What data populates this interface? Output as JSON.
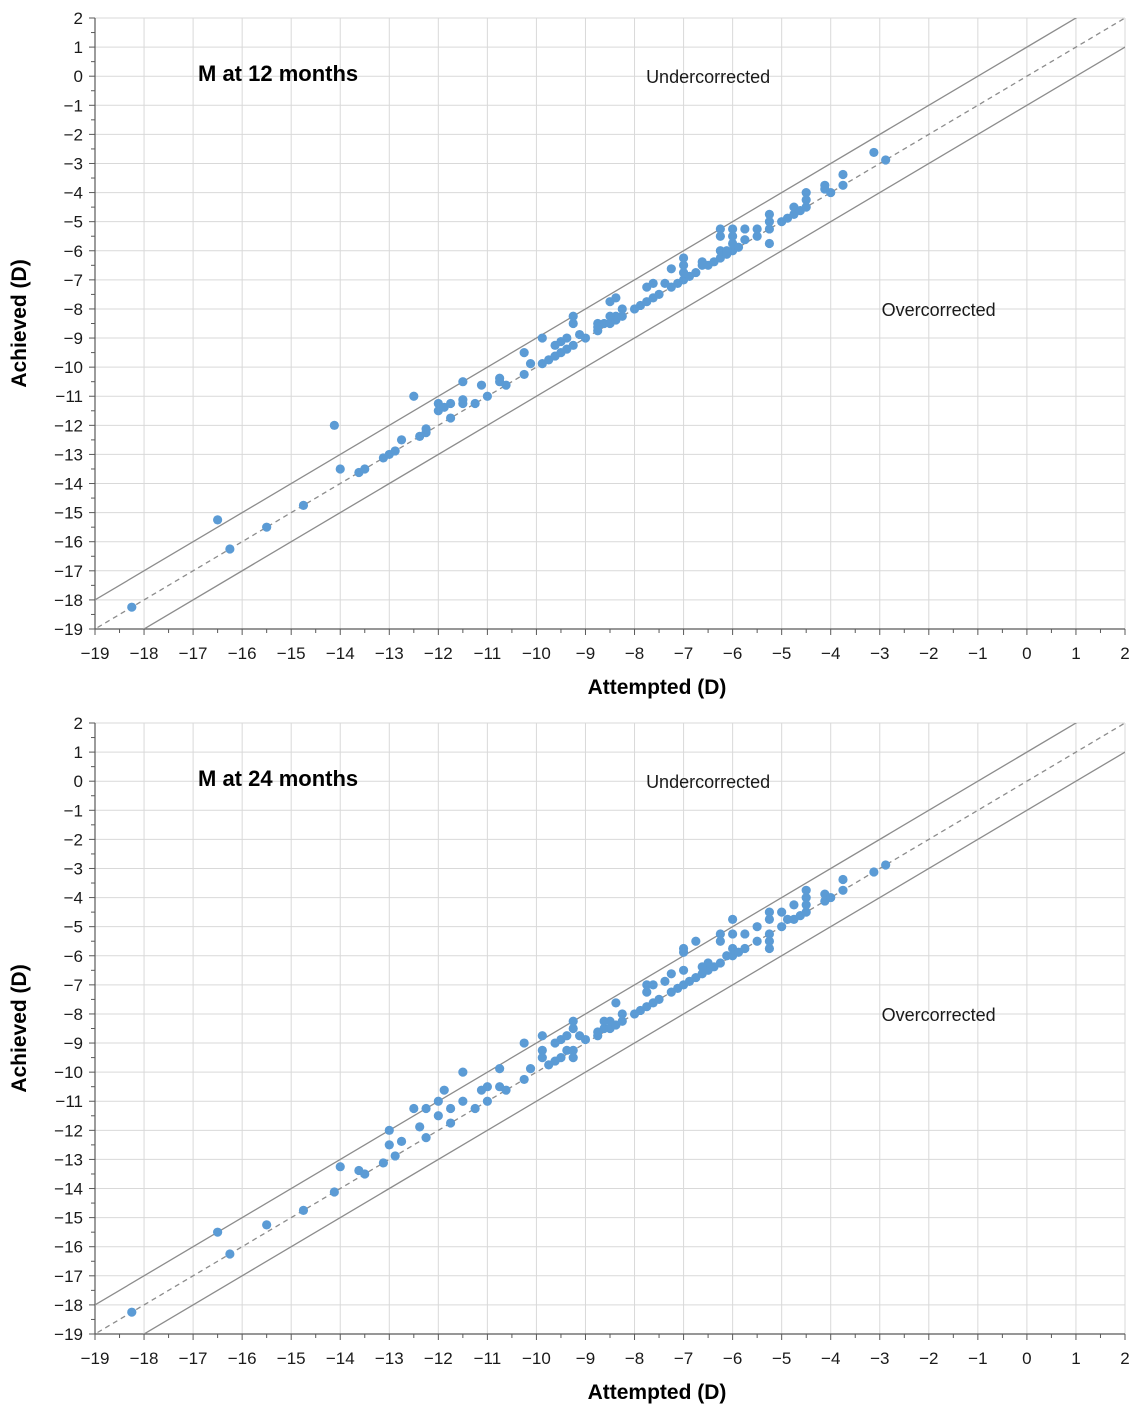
{
  "chart_data": [
    {
      "type": "scatter",
      "title": "M at 12 months",
      "xlabel": "Attempted (D)",
      "ylabel": "Achieved (D)",
      "xlim": [
        -19,
        2
      ],
      "ylim": [
        -19,
        2
      ],
      "xticks": [
        -19,
        -18,
        -17,
        -16,
        -15,
        -14,
        -13,
        -12,
        -11,
        -10,
        -9,
        -8,
        -7,
        -6,
        -5,
        -4,
        -3,
        -2,
        -1,
        0,
        1,
        2
      ],
      "yticks": [
        2,
        1,
        0,
        -1,
        -2,
        -3,
        -4,
        -5,
        -6,
        -7,
        -8,
        -9,
        -10,
        -11,
        -12,
        -13,
        -14,
        -15,
        -16,
        -17,
        -18,
        -19
      ],
      "grid": true,
      "reference_lines": [
        {
          "kind": "identity",
          "style": "dashed",
          "offset": 0
        },
        {
          "kind": "limit",
          "style": "solid",
          "offset": 1
        },
        {
          "kind": "limit",
          "style": "solid",
          "offset": -1
        }
      ],
      "annotations": [
        {
          "text": "Undercorrected",
          "x": -6.5,
          "y": 0
        },
        {
          "text": "Overcorrected",
          "x": -1.8,
          "y": -8
        }
      ],
      "point_color": "#5b9bd5",
      "line_color": "#8c8c8c",
      "points": [
        [
          -18.25,
          -18.25
        ],
        [
          -16.5,
          -15.25
        ],
        [
          -16.25,
          -16.25
        ],
        [
          -15.5,
          -15.5
        ],
        [
          -14.75,
          -14.75
        ],
        [
          -14.12,
          -12.0
        ],
        [
          -14.0,
          -13.5
        ],
        [
          -13.62,
          -13.62
        ],
        [
          -13.5,
          -13.5
        ],
        [
          -13.12,
          -13.12
        ],
        [
          -13.0,
          -13.0
        ],
        [
          -12.88,
          -12.88
        ],
        [
          -12.75,
          -12.5
        ],
        [
          -12.5,
          -11.0
        ],
        [
          -12.38,
          -12.38
        ],
        [
          -12.25,
          -12.25
        ],
        [
          -12.25,
          -12.12
        ],
        [
          -12.0,
          -11.5
        ],
        [
          -12.0,
          -11.25
        ],
        [
          -11.88,
          -11.38
        ],
        [
          -11.75,
          -11.25
        ],
        [
          -11.75,
          -11.75
        ],
        [
          -11.5,
          -11.12
        ],
        [
          -11.5,
          -11.25
        ],
        [
          -11.5,
          -10.5
        ],
        [
          -11.25,
          -11.25
        ],
        [
          -11.12,
          -10.62
        ],
        [
          -11.0,
          -11.0
        ],
        [
          -10.75,
          -10.38
        ],
        [
          -10.75,
          -10.5
        ],
        [
          -10.62,
          -10.62
        ],
        [
          -10.25,
          -10.25
        ],
        [
          -10.25,
          -9.5
        ],
        [
          -10.12,
          -9.88
        ],
        [
          -9.88,
          -9.88
        ],
        [
          -9.88,
          -9.0
        ],
        [
          -9.75,
          -9.75
        ],
        [
          -9.62,
          -9.62
        ],
        [
          -9.62,
          -9.25
        ],
        [
          -9.5,
          -9.12
        ],
        [
          -9.5,
          -9.5
        ],
        [
          -9.38,
          -9.38
        ],
        [
          -9.38,
          -9.0
        ],
        [
          -9.25,
          -9.25
        ],
        [
          -9.25,
          -8.5
        ],
        [
          -9.25,
          -8.25
        ],
        [
          -9.12,
          -8.88
        ],
        [
          -9.0,
          -9.0
        ],
        [
          -8.75,
          -8.75
        ],
        [
          -8.75,
          -8.5
        ],
        [
          -8.62,
          -8.5
        ],
        [
          -8.5,
          -8.5
        ],
        [
          -8.5,
          -7.75
        ],
        [
          -8.38,
          -8.38
        ],
        [
          -8.38,
          -7.62
        ],
        [
          -8.38,
          -8.25
        ],
        [
          -8.25,
          -8.25
        ],
        [
          -8.25,
          -8.0
        ],
        [
          -8.0,
          -8.0
        ],
        [
          -7.88,
          -7.88
        ],
        [
          -7.75,
          -7.75
        ],
        [
          -7.75,
          -7.25
        ],
        [
          -7.62,
          -7.62
        ],
        [
          -7.62,
          -7.12
        ],
        [
          -7.5,
          -7.5
        ],
        [
          -7.38,
          -7.12
        ],
        [
          -7.25,
          -7.25
        ],
        [
          -7.25,
          -6.62
        ],
        [
          -7.12,
          -7.12
        ],
        [
          -7.0,
          -7.0
        ],
        [
          -7.0,
          -6.75
        ],
        [
          -7.0,
          -6.25
        ],
        [
          -7.0,
          -6.5
        ],
        [
          -6.88,
          -6.88
        ],
        [
          -6.75,
          -6.75
        ],
        [
          -6.62,
          -6.5
        ],
        [
          -6.5,
          -6.5
        ],
        [
          -6.38,
          -6.38
        ],
        [
          -6.25,
          -6.25
        ],
        [
          -6.25,
          -6.0
        ],
        [
          -6.12,
          -6.12
        ],
        [
          -6.0,
          -6.0
        ],
        [
          -6.0,
          -5.75
        ],
        [
          -5.88,
          -5.88
        ],
        [
          -5.75,
          -5.62
        ],
        [
          -5.75,
          -5.25
        ],
        [
          -5.5,
          -5.5
        ],
        [
          -5.5,
          -5.25
        ],
        [
          -5.25,
          -5.25
        ],
        [
          -5.25,
          -5.0
        ],
        [
          -5.25,
          -4.75
        ],
        [
          -5.25,
          -5.75
        ],
        [
          -5.0,
          -5.0
        ],
        [
          -4.88,
          -4.88
        ],
        [
          -4.75,
          -4.75
        ],
        [
          -4.75,
          -4.5
        ],
        [
          -4.62,
          -4.62
        ],
        [
          -4.5,
          -4.5
        ],
        [
          -4.5,
          -4.25
        ],
        [
          -4.5,
          -4.0
        ],
        [
          -4.12,
          -3.75
        ],
        [
          -4.12,
          -3.88
        ],
        [
          -4.0,
          -4.0
        ],
        [
          -3.75,
          -3.75
        ],
        [
          -3.75,
          -3.38
        ],
        [
          -3.12,
          -2.62
        ],
        [
          -2.88,
          -2.88
        ],
        [
          -6.25,
          -5.25
        ],
        [
          -6.25,
          -5.5
        ],
        [
          -6.0,
          -5.5
        ],
        [
          -6.0,
          -5.25
        ],
        [
          -6.62,
          -6.38
        ],
        [
          -6.12,
          -6.0
        ],
        [
          -8.5,
          -8.25
        ],
        [
          -8.75,
          -8.62
        ]
      ]
    },
    {
      "type": "scatter",
      "title": "M at 24 months",
      "xlabel": "Attempted (D)",
      "ylabel": "Achieved (D)",
      "xlim": [
        -19,
        2
      ],
      "ylim": [
        -19,
        2
      ],
      "xticks": [
        -19,
        -18,
        -17,
        -16,
        -15,
        -14,
        -13,
        -12,
        -11,
        -10,
        -9,
        -8,
        -7,
        -6,
        -5,
        -4,
        -3,
        -2,
        -1,
        0,
        1,
        2
      ],
      "yticks": [
        2,
        1,
        0,
        -1,
        -2,
        -3,
        -4,
        -5,
        -6,
        -7,
        -8,
        -9,
        -10,
        -11,
        -12,
        -13,
        -14,
        -15,
        -16,
        -17,
        -18,
        -19
      ],
      "grid": true,
      "reference_lines": [
        {
          "kind": "identity",
          "style": "dashed",
          "offset": 0
        },
        {
          "kind": "limit",
          "style": "solid",
          "offset": 1
        },
        {
          "kind": "limit",
          "style": "solid",
          "offset": -1
        }
      ],
      "annotations": [
        {
          "text": "Undercorrected",
          "x": -6.5,
          "y": 0
        },
        {
          "text": "Overcorrected",
          "x": -1.8,
          "y": -8
        }
      ],
      "point_color": "#5b9bd5",
      "line_color": "#8c8c8c",
      "points": [
        [
          -18.25,
          -18.25
        ],
        [
          -16.5,
          -15.5
        ],
        [
          -16.25,
          -16.25
        ],
        [
          -15.5,
          -15.25
        ],
        [
          -14.75,
          -14.75
        ],
        [
          -14.12,
          -14.12
        ],
        [
          -14.0,
          -13.25
        ],
        [
          -13.62,
          -13.38
        ],
        [
          -13.5,
          -13.5
        ],
        [
          -13.12,
          -13.12
        ],
        [
          -13.0,
          -12.0
        ],
        [
          -13.0,
          -12.5
        ],
        [
          -12.88,
          -12.88
        ],
        [
          -12.75,
          -12.38
        ],
        [
          -12.5,
          -11.25
        ],
        [
          -12.38,
          -11.88
        ],
        [
          -12.25,
          -12.25
        ],
        [
          -12.25,
          -11.25
        ],
        [
          -12.0,
          -11.0
        ],
        [
          -12.0,
          -11.5
        ],
        [
          -11.88,
          -10.62
        ],
        [
          -11.75,
          -11.25
        ],
        [
          -11.75,
          -11.75
        ],
        [
          -11.5,
          -11.0
        ],
        [
          -11.5,
          -10.0
        ],
        [
          -11.25,
          -11.25
        ],
        [
          -11.12,
          -10.62
        ],
        [
          -11.0,
          -11.0
        ],
        [
          -11.0,
          -10.5
        ],
        [
          -10.75,
          -10.5
        ],
        [
          -10.75,
          -9.88
        ],
        [
          -10.62,
          -10.62
        ],
        [
          -10.25,
          -10.25
        ],
        [
          -10.25,
          -9.0
        ],
        [
          -10.12,
          -9.88
        ],
        [
          -9.88,
          -9.25
        ],
        [
          -9.88,
          -9.5
        ],
        [
          -9.88,
          -8.75
        ],
        [
          -9.75,
          -9.75
        ],
        [
          -9.62,
          -9.62
        ],
        [
          -9.62,
          -9.0
        ],
        [
          -9.5,
          -9.5
        ],
        [
          -9.5,
          -8.88
        ],
        [
          -9.38,
          -9.25
        ],
        [
          -9.38,
          -8.75
        ],
        [
          -9.25,
          -9.25
        ],
        [
          -9.25,
          -9.5
        ],
        [
          -9.25,
          -8.25
        ],
        [
          -9.25,
          -8.5
        ],
        [
          -9.12,
          -8.75
        ],
        [
          -9.0,
          -8.88
        ],
        [
          -8.75,
          -8.75
        ],
        [
          -8.62,
          -8.5
        ],
        [
          -8.5,
          -8.5
        ],
        [
          -8.5,
          -8.25
        ],
        [
          -8.38,
          -8.38
        ],
        [
          -8.38,
          -7.62
        ],
        [
          -8.25,
          -8.25
        ],
        [
          -8.25,
          -8.0
        ],
        [
          -8.0,
          -8.0
        ],
        [
          -7.88,
          -7.88
        ],
        [
          -7.75,
          -7.75
        ],
        [
          -7.75,
          -7.25
        ],
        [
          -7.75,
          -7.0
        ],
        [
          -7.62,
          -7.62
        ],
        [
          -7.62,
          -7.0
        ],
        [
          -7.5,
          -7.5
        ],
        [
          -7.38,
          -6.88
        ],
        [
          -7.25,
          -7.25
        ],
        [
          -7.25,
          -6.62
        ],
        [
          -7.12,
          -7.12
        ],
        [
          -7.0,
          -7.0
        ],
        [
          -7.0,
          -6.5
        ],
        [
          -7.0,
          -5.88
        ],
        [
          -7.0,
          -5.75
        ],
        [
          -6.88,
          -6.88
        ],
        [
          -6.75,
          -6.75
        ],
        [
          -6.75,
          -5.5
        ],
        [
          -6.62,
          -6.62
        ],
        [
          -6.5,
          -6.5
        ],
        [
          -6.38,
          -6.38
        ],
        [
          -6.25,
          -6.25
        ],
        [
          -6.25,
          -5.25
        ],
        [
          -6.25,
          -5.5
        ],
        [
          -6.12,
          -6.0
        ],
        [
          -6.0,
          -6.0
        ],
        [
          -6.0,
          -5.75
        ],
        [
          -6.0,
          -5.25
        ],
        [
          -6.0,
          -4.75
        ],
        [
          -5.88,
          -5.88
        ],
        [
          -5.75,
          -5.75
        ],
        [
          -5.75,
          -5.25
        ],
        [
          -5.5,
          -5.5
        ],
        [
          -5.5,
          -5.0
        ],
        [
          -5.25,
          -5.25
        ],
        [
          -5.25,
          -4.75
        ],
        [
          -5.25,
          -4.5
        ],
        [
          -5.25,
          -5.5
        ],
        [
          -5.25,
          -5.75
        ],
        [
          -5.0,
          -5.0
        ],
        [
          -5.0,
          -4.5
        ],
        [
          -4.88,
          -4.75
        ],
        [
          -4.75,
          -4.75
        ],
        [
          -4.75,
          -4.25
        ],
        [
          -4.62,
          -4.62
        ],
        [
          -4.5,
          -4.5
        ],
        [
          -4.5,
          -4.25
        ],
        [
          -4.5,
          -4.0
        ],
        [
          -4.5,
          -3.75
        ],
        [
          -4.12,
          -3.88
        ],
        [
          -4.12,
          -4.12
        ],
        [
          -4.0,
          -4.0
        ],
        [
          -3.75,
          -3.75
        ],
        [
          -3.75,
          -3.38
        ],
        [
          -3.12,
          -3.12
        ],
        [
          -2.88,
          -2.88
        ],
        [
          -6.5,
          -6.25
        ],
        [
          -6.62,
          -6.38
        ],
        [
          -8.62,
          -8.25
        ],
        [
          -8.75,
          -8.62
        ]
      ]
    }
  ]
}
